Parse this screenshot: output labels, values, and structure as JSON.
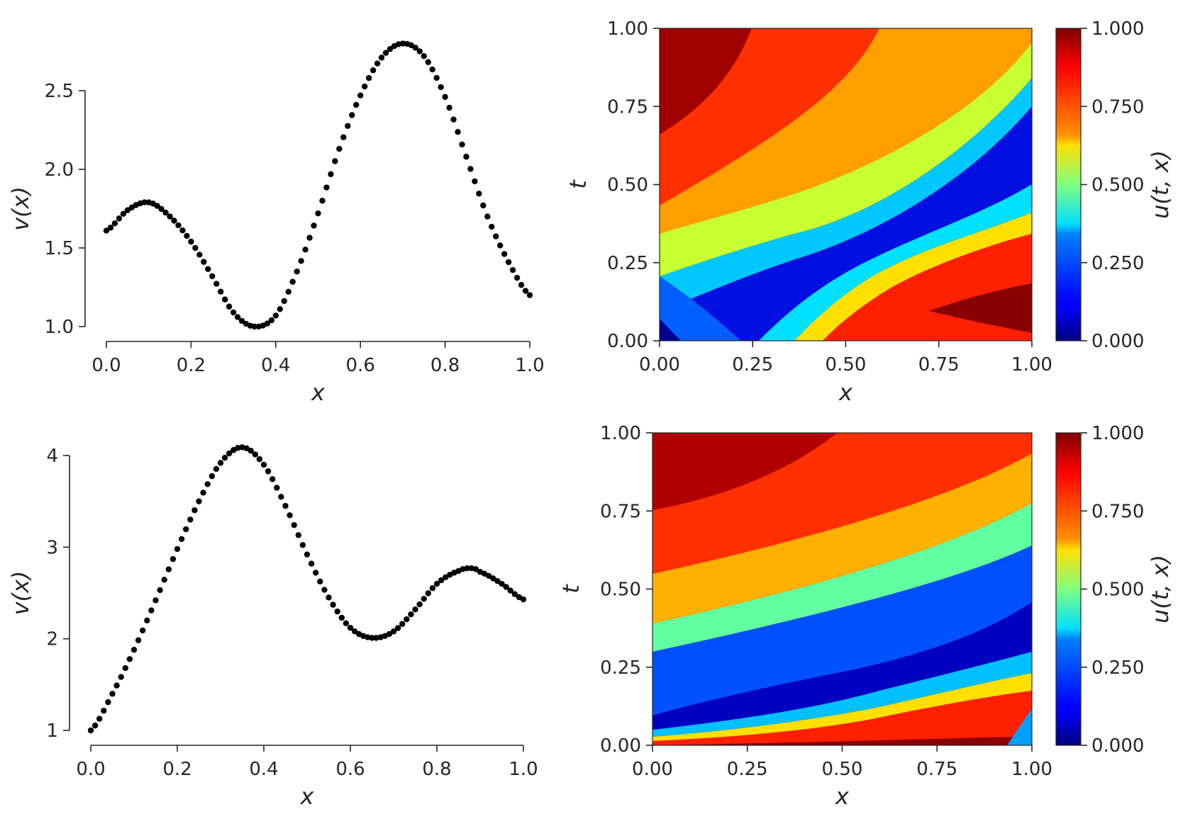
{
  "chart_data": [
    {
      "type": "scatter",
      "xlabel": "x",
      "ylabel": "v(x)",
      "xlim": [
        0,
        1
      ],
      "ylim": [
        0.925,
        2.85
      ],
      "xticks": [
        "0.0",
        "0.2",
        "0.4",
        "0.6",
        "0.8",
        "1.0"
      ],
      "yticks": [
        "1.0",
        "1.5",
        "2.0",
        "2.5"
      ],
      "series": [
        {
          "color": "#000000",
          "points": [
            [
              0.0,
              1.61
            ],
            [
              0.05,
              1.74
            ],
            [
              0.1,
              1.79
            ],
            [
              0.15,
              1.7
            ],
            [
              0.2,
              1.54
            ],
            [
              0.25,
              1.32
            ],
            [
              0.3,
              1.09
            ],
            [
              0.35,
              1.0
            ],
            [
              0.4,
              1.07
            ],
            [
              0.45,
              1.35
            ],
            [
              0.5,
              1.72
            ],
            [
              0.55,
              2.13
            ],
            [
              0.6,
              2.47
            ],
            [
              0.65,
              2.71
            ],
            [
              0.7,
              2.8
            ],
            [
              0.75,
              2.72
            ],
            [
              0.8,
              2.46
            ],
            [
              0.85,
              2.08
            ],
            [
              0.9,
              1.7
            ],
            [
              0.95,
              1.41
            ],
            [
              1.0,
              1.2
            ]
          ]
        }
      ]
    },
    {
      "type": "heatmap",
      "xlabel": "x",
      "ylabel": "t",
      "colorbar_label": "u(t, x)",
      "colormap": "jet",
      "xlim": [
        0,
        1
      ],
      "ylim": [
        0,
        1
      ],
      "clim": [
        0,
        1
      ],
      "xticks": [
        "0.00",
        "0.25",
        "0.50",
        "0.75",
        "1.00"
      ],
      "yticks": [
        "0.00",
        "0.25",
        "0.50",
        "0.75",
        "1.00"
      ],
      "colorbar_ticks": [
        "0.000",
        "0.250",
        "0.500",
        "0.750",
        "1.000"
      ]
    },
    {
      "type": "scatter",
      "xlabel": "x",
      "ylabel": "v(x)",
      "xlim": [
        0,
        1
      ],
      "ylim": [
        0.93,
        4.12
      ],
      "xticks": [
        "0.0",
        "0.2",
        "0.4",
        "0.6",
        "0.8",
        "1.0"
      ],
      "yticks": [
        "1",
        "2",
        "3",
        "4"
      ],
      "series": [
        {
          "color": "#000000",
          "points": [
            [
              0.0,
              1.0
            ],
            [
              0.05,
              1.4
            ],
            [
              0.1,
              1.88
            ],
            [
              0.15,
              2.42
            ],
            [
              0.2,
              2.98
            ],
            [
              0.25,
              3.5
            ],
            [
              0.3,
              3.92
            ],
            [
              0.35,
              4.09
            ],
            [
              0.4,
              3.9
            ],
            [
              0.45,
              3.45
            ],
            [
              0.5,
              2.92
            ],
            [
              0.55,
              2.45
            ],
            [
              0.6,
              2.12
            ],
            [
              0.65,
              2.01
            ],
            [
              0.7,
              2.08
            ],
            [
              0.75,
              2.32
            ],
            [
              0.8,
              2.6
            ],
            [
              0.85,
              2.74
            ],
            [
              0.88,
              2.77
            ],
            [
              0.9,
              2.73
            ],
            [
              0.95,
              2.6
            ],
            [
              1.0,
              2.43
            ]
          ]
        }
      ]
    },
    {
      "type": "heatmap",
      "xlabel": "x",
      "ylabel": "t",
      "colorbar_label": "u(t, x)",
      "colormap": "jet",
      "xlim": [
        0,
        1
      ],
      "ylim": [
        0,
        1
      ],
      "clim": [
        0,
        1
      ],
      "xticks": [
        "0.00",
        "0.25",
        "0.50",
        "0.75",
        "1.00"
      ],
      "yticks": [
        "0.00",
        "0.25",
        "0.50",
        "0.75",
        "1.00"
      ],
      "colorbar_ticks": [
        "0.000",
        "0.250",
        "0.500",
        "0.750",
        "1.000"
      ]
    }
  ]
}
